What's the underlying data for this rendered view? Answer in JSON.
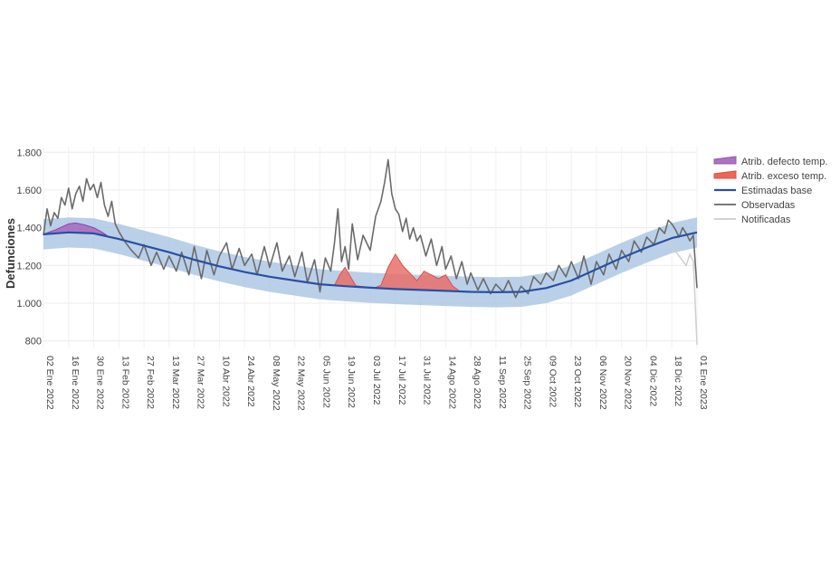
{
  "chart_data": {
    "type": "line",
    "title": "",
    "xlabel": "",
    "ylabel": "Defunciones",
    "ylim": [
      760,
      1830
    ],
    "x_range": [
      "2022-01-02",
      "2023-01-01"
    ],
    "grid": true,
    "legend_position": "right",
    "y_ticks": [
      800,
      1000,
      1200,
      1400,
      1600,
      1800
    ],
    "y_tick_labels": [
      "800",
      "1.000",
      "1.200",
      "1.400",
      "1.600",
      "1.800"
    ],
    "x_ticks": [
      "2022-01-02",
      "2022-01-16",
      "2022-01-30",
      "2022-02-13",
      "2022-02-27",
      "2022-03-13",
      "2022-03-27",
      "2022-04-10",
      "2022-04-24",
      "2022-05-08",
      "2022-05-22",
      "2022-06-05",
      "2022-06-19",
      "2022-07-03",
      "2022-07-17",
      "2022-07-31",
      "2022-08-14",
      "2022-08-28",
      "2022-09-11",
      "2022-09-25",
      "2022-10-09",
      "2022-10-23",
      "2022-11-06",
      "2022-11-20",
      "2022-12-04",
      "2022-12-18",
      "2023-01-01"
    ],
    "x_tick_labels": [
      "02 Ene 2022",
      "16 Ene 2022",
      "30 Ene 2022",
      "13 Feb 2022",
      "27 Feb 2022",
      "13 Mar 2022",
      "27 Mar 2022",
      "10 Abr 2022",
      "24 Abr 2022",
      "08 May 2022",
      "22 May 2022",
      "05 Jun 2022",
      "19 Jun 2022",
      "03 Jul 2022",
      "17 Jul 2022",
      "31 Jul 2022",
      "14 Ago 2022",
      "28 Ago 2022",
      "11 Sep 2022",
      "25 Sep 2022",
      "09 Oct 2022",
      "23 Oct 2022",
      "06 Nov 2022",
      "20 Nov 2022",
      "04 Dic 2022",
      "18 Dic 2022",
      "01 Ene 2023"
    ],
    "legend": [
      {
        "name": "Atrib. defecto temp.",
        "color": "#9b59b6"
      },
      {
        "name": "Atrib. exceso temp.",
        "color": "#e74c3c"
      },
      {
        "name": "Estimadas base",
        "color": "#2b4fa0"
      },
      {
        "name": "Observadas",
        "color": "#666666"
      },
      {
        "name": "Notificadas",
        "color": "#cccccc"
      }
    ],
    "series": [
      {
        "name": "Estimadas base",
        "x": [
          "2022-01-02",
          "2022-01-16",
          "2022-01-30",
          "2022-02-13",
          "2022-02-27",
          "2022-03-13",
          "2022-03-27",
          "2022-04-10",
          "2022-04-24",
          "2022-05-08",
          "2022-05-22",
          "2022-06-05",
          "2022-06-19",
          "2022-07-03",
          "2022-07-17",
          "2022-07-31",
          "2022-08-14",
          "2022-08-28",
          "2022-09-11",
          "2022-09-25",
          "2022-10-09",
          "2022-10-23",
          "2022-11-06",
          "2022-11-20",
          "2022-12-04",
          "2022-12-18",
          "2023-01-01"
        ],
        "values": [
          1365,
          1375,
          1370,
          1340,
          1305,
          1270,
          1230,
          1195,
          1165,
          1140,
          1120,
          1100,
          1090,
          1082,
          1075,
          1070,
          1065,
          1060,
          1058,
          1060,
          1080,
          1120,
          1180,
          1240,
          1295,
          1345,
          1375
        ],
        "band_lower": [
          1285,
          1295,
          1290,
          1260,
          1225,
          1190,
          1150,
          1115,
          1085,
          1060,
          1040,
          1020,
          1010,
          1002,
          995,
          990,
          985,
          980,
          978,
          980,
          1000,
          1040,
          1100,
          1160,
          1215,
          1265,
          1295
        ],
        "band_upper": [
          1445,
          1455,
          1450,
          1420,
          1385,
          1350,
          1310,
          1275,
          1245,
          1220,
          1200,
          1180,
          1170,
          1162,
          1155,
          1150,
          1145,
          1140,
          1138,
          1140,
          1160,
          1200,
          1260,
          1320,
          1375,
          1425,
          1455
        ]
      },
      {
        "name": "Observadas",
        "x": [
          "2022-01-02",
          "2022-01-04",
          "2022-01-06",
          "2022-01-08",
          "2022-01-10",
          "2022-01-12",
          "2022-01-14",
          "2022-01-16",
          "2022-01-18",
          "2022-01-20",
          "2022-01-22",
          "2022-01-24",
          "2022-01-26",
          "2022-01-28",
          "2022-01-30",
          "2022-02-01",
          "2022-02-03",
          "2022-02-05",
          "2022-02-07",
          "2022-02-09",
          "2022-02-11",
          "2022-02-13",
          "2022-02-16",
          "2022-02-20",
          "2022-02-24",
          "2022-02-27",
          "2022-03-03",
          "2022-03-06",
          "2022-03-10",
          "2022-03-13",
          "2022-03-17",
          "2022-03-20",
          "2022-03-24",
          "2022-03-27",
          "2022-03-31",
          "2022-04-03",
          "2022-04-07",
          "2022-04-10",
          "2022-04-14",
          "2022-04-17",
          "2022-04-21",
          "2022-04-24",
          "2022-04-28",
          "2022-05-01",
          "2022-05-05",
          "2022-05-08",
          "2022-05-12",
          "2022-05-15",
          "2022-05-19",
          "2022-05-22",
          "2022-05-26",
          "2022-05-29",
          "2022-06-02",
          "2022-06-05",
          "2022-06-08",
          "2022-06-11",
          "2022-06-13",
          "2022-06-15",
          "2022-06-17",
          "2022-06-19",
          "2022-06-21",
          "2022-06-23",
          "2022-06-26",
          "2022-06-29",
          "2022-07-03",
          "2022-07-06",
          "2022-07-09",
          "2022-07-11",
          "2022-07-13",
          "2022-07-15",
          "2022-07-17",
          "2022-07-19",
          "2022-07-21",
          "2022-07-23",
          "2022-07-25",
          "2022-07-27",
          "2022-07-29",
          "2022-07-31",
          "2022-08-03",
          "2022-08-06",
          "2022-08-09",
          "2022-08-12",
          "2022-08-14",
          "2022-08-17",
          "2022-08-20",
          "2022-08-23",
          "2022-08-26",
          "2022-08-28",
          "2022-09-01",
          "2022-09-04",
          "2022-09-08",
          "2022-09-11",
          "2022-09-15",
          "2022-09-18",
          "2022-09-22",
          "2022-09-25",
          "2022-09-29",
          "2022-10-02",
          "2022-10-06",
          "2022-10-09",
          "2022-10-13",
          "2022-10-16",
          "2022-10-20",
          "2022-10-23",
          "2022-10-27",
          "2022-10-30",
          "2022-11-03",
          "2022-11-06",
          "2022-11-10",
          "2022-11-13",
          "2022-11-17",
          "2022-11-20",
          "2022-11-24",
          "2022-11-27",
          "2022-12-01",
          "2022-12-04",
          "2022-12-08",
          "2022-12-11",
          "2022-12-14",
          "2022-12-16",
          "2022-12-18",
          "2022-12-20",
          "2022-12-22",
          "2022-12-24",
          "2022-12-26",
          "2022-12-28",
          "2022-12-30",
          "2023-01-01"
        ],
        "values": [
          1360,
          1500,
          1410,
          1480,
          1450,
          1560,
          1520,
          1610,
          1500,
          1580,
          1620,
          1540,
          1660,
          1600,
          1630,
          1560,
          1640,
          1520,
          1460,
          1540,
          1420,
          1380,
          1330,
          1280,
          1240,
          1310,
          1200,
          1270,
          1180,
          1250,
          1170,
          1270,
          1150,
          1300,
          1130,
          1280,
          1150,
          1250,
          1320,
          1180,
          1290,
          1200,
          1260,
          1150,
          1300,
          1190,
          1320,
          1170,
          1250,
          1140,
          1270,
          1110,
          1230,
          1060,
          1240,
          1170,
          1310,
          1500,
          1220,
          1300,
          1180,
          1420,
          1230,
          1360,
          1280,
          1460,
          1540,
          1640,
          1760,
          1580,
          1500,
          1470,
          1380,
          1450,
          1340,
          1400,
          1330,
          1360,
          1250,
          1340,
          1200,
          1300,
          1180,
          1250,
          1130,
          1220,
          1100,
          1160,
          1070,
          1130,
          1050,
          1100,
          1060,
          1120,
          1030,
          1090,
          1050,
          1140,
          1100,
          1160,
          1120,
          1200,
          1140,
          1220,
          1130,
          1250,
          1100,
          1220,
          1150,
          1260,
          1180,
          1280,
          1220,
          1330,
          1270,
          1350,
          1310,
          1400,
          1370,
          1440,
          1420,
          1390,
          1350,
          1400,
          1370,
          1330,
          1360,
          1080
        ]
      },
      {
        "name": "Notificadas",
        "x": [
          "2022-12-14",
          "2022-12-18",
          "2022-12-22",
          "2022-12-26",
          "2022-12-28",
          "2022-12-30",
          "2023-01-01"
        ],
        "values": [
          1390,
          1300,
          1250,
          1200,
          1260,
          1220,
          780
        ]
      },
      {
        "name": "Atrib. defecto temp.",
        "x": [
          "2022-01-02",
          "2022-01-09",
          "2022-01-16",
          "2022-01-20",
          "2022-01-25",
          "2022-01-30",
          "2022-02-03",
          "2022-02-06"
        ],
        "values": [
          1365,
          1390,
          1420,
          1425,
          1415,
          1400,
          1380,
          1362
        ],
        "base": [
          1365,
          1370,
          1375,
          1376,
          1374,
          1370,
          1365,
          1360
        ]
      },
      {
        "name": "Atrib. exceso temp.",
        "x": [
          "2022-06-13",
          "2022-06-16",
          "2022-06-19",
          "2022-06-22",
          "2022-06-25",
          "2022-06-29",
          "2022-07-05",
          "2022-07-09",
          "2022-07-13",
          "2022-07-17",
          "2022-07-21",
          "2022-07-25",
          "2022-07-29",
          "2022-08-02",
          "2022-08-06",
          "2022-08-10",
          "2022-08-14",
          "2022-08-18",
          "2022-08-22"
        ],
        "values": [
          1093,
          1150,
          1190,
          1140,
          1092,
          1087,
          1080,
          1095,
          1190,
          1260,
          1200,
          1160,
          1120,
          1170,
          1150,
          1130,
          1150,
          1090,
          1063
        ],
        "base": [
          1093,
          1091,
          1090,
          1088,
          1087,
          1085,
          1081,
          1078,
          1076,
          1075,
          1073,
          1072,
          1071,
          1069,
          1068,
          1067,
          1065,
          1064,
          1063
        ]
      }
    ]
  }
}
